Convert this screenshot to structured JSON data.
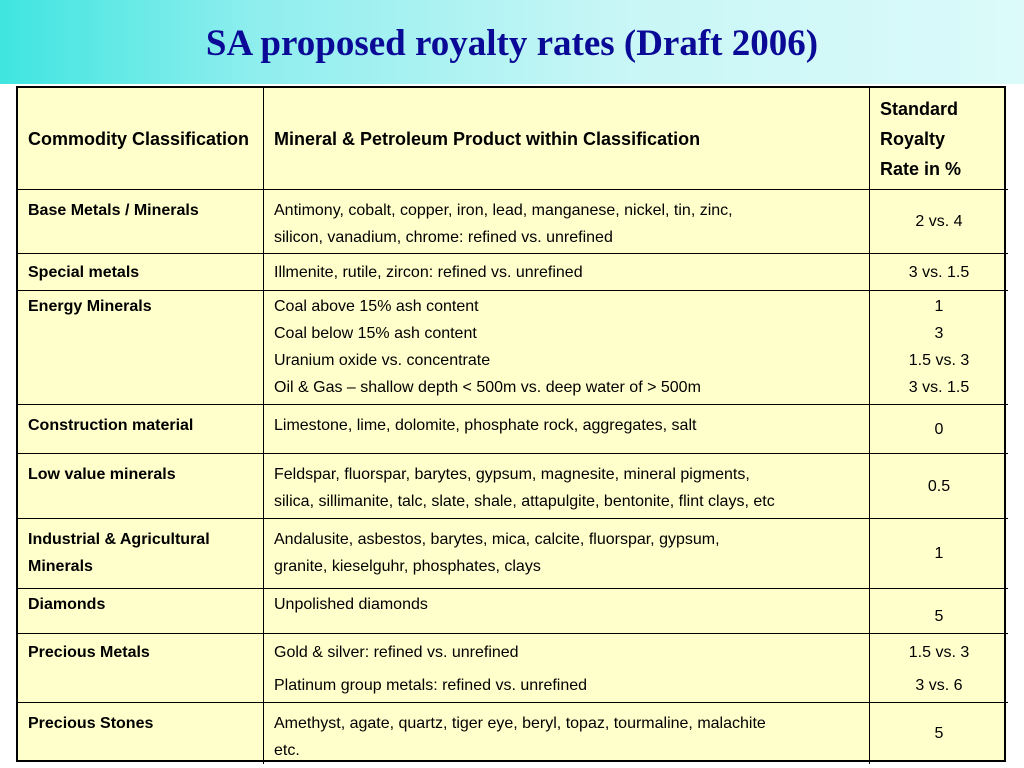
{
  "title": "SA proposed royalty rates (Draft 2006)",
  "headers": {
    "classification": "Commodity Classification",
    "products": "Mineral & Petroleum Product within Classification",
    "rate": [
      "Standard",
      "Royalty",
      "Rate in  %"
    ]
  },
  "rows": [
    {
      "classification": "Base Metals / Minerals",
      "products": [
        "Antimony, cobalt, copper, iron, lead, manganese, nickel, tin, zinc,",
        "silicon, vanadium, chrome: refined vs. unrefined"
      ],
      "rates": [
        "2 vs. 4"
      ]
    },
    {
      "classification": "Special metals",
      "products": [
        "Illmenite, rutile, zircon: refined vs. unrefined"
      ],
      "rates": [
        "3 vs. 1.5"
      ]
    },
    {
      "classification": "Energy Minerals",
      "products": [
        "Coal above 15% ash content",
        "Coal below 15% ash content",
        "Uranium oxide vs. concentrate",
        "Oil & Gas – shallow depth < 500m vs. deep water of > 500m"
      ],
      "rates": [
        "1",
        "3",
        "1.5 vs. 3",
        "3 vs. 1.5"
      ]
    },
    {
      "classification": "Construction material",
      "products": [
        "Limestone, lime, dolomite, phosphate rock, aggregates, salt"
      ],
      "rates": [
        "0"
      ]
    },
    {
      "classification": "Low value minerals",
      "products": [
        "Feldspar, fluorspar, barytes, gypsum, magnesite, mineral pigments,",
        "silica, sillimanite, talc, slate, shale, attapulgite, bentonite, flint clays, etc"
      ],
      "rates": [
        "0.5"
      ]
    },
    {
      "classification": [
        "Industrial & Agricultural",
        "Minerals"
      ],
      "products": [
        "Andalusite, asbestos, barytes, mica, calcite, fluorspar, gypsum,",
        "granite, kieselguhr, phosphates, clays"
      ],
      "rates": [
        "1"
      ]
    },
    {
      "classification": "Diamonds",
      "products": [
        "Unpolished diamonds"
      ],
      "rates": [
        "5"
      ]
    },
    {
      "classification": "Precious Metals",
      "products": [
        "Gold & silver: refined vs. unrefined",
        "Platinum group metals: refined vs. unrefined"
      ],
      "rates": [
        "1.5 vs. 3",
        "3 vs. 6"
      ]
    },
    {
      "classification": "Precious Stones",
      "products": [
        "Amethyst, agate, quartz, tiger eye, beryl, topaz, tourmaline, malachite",
        "etc."
      ],
      "rates": [
        "5"
      ]
    }
  ]
}
